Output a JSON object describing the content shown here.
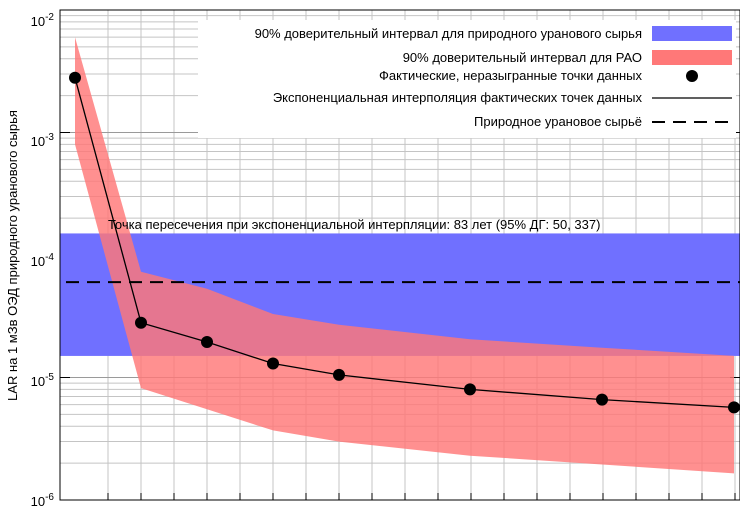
{
  "chart_data": {
    "type": "line",
    "title": "",
    "xlabel": "",
    "ylabel": "LAR на 1 мЗв ОЭД природного уранового сырья",
    "yscale": "log",
    "ylim": [
      1e-06,
      0.01
    ],
    "ytick_labels": [
      {
        "base": "10",
        "exp": "-6",
        "value": 1e-06
      },
      {
        "base": "10",
        "exp": "-5",
        "value": 1e-05
      },
      {
        "base": "10",
        "exp": "-4",
        "value": 0.0001
      },
      {
        "base": "10",
        "exp": "-3",
        "value": 0.001
      },
      {
        "base": "10",
        "exp": "-2",
        "value": 0.01
      }
    ],
    "x_tick_labels_visible": false,
    "grid": true,
    "legend_position": "top-right",
    "bands": [
      {
        "name": "90% доверительный интервал для природного уранового сырья",
        "color": "#7070ff",
        "lower": 1.5e-05,
        "upper": 0.00015
      },
      {
        "name": "90% доверительный интервал для РАО",
        "color": "#ff7878",
        "lower": [
          0.0008,
          8.2e-06,
          5.5e-06,
          3.7e-06,
          3e-06,
          2.3e-06,
          1.95e-06,
          1.65e-06
        ],
        "upper": [
          0.006,
          7.3e-05,
          5.3e-05,
          3.3e-05,
          2.7e-05,
          2.05e-05,
          1.75e-05,
          1.5e-05
        ]
      }
    ],
    "series": [
      {
        "name": "Фактические, неразыгранные точки данных",
        "marker": "circle",
        "y": [
          0.0028,
          2.8e-05,
          1.95e-05,
          1.3e-05,
          1.05e-05,
          8e-06,
          6.6e-06,
          5.7e-06
        ]
      },
      {
        "name": "Экспоненциальная интерполяция фактических точек данных",
        "style": "solid"
      },
      {
        "name": "Природное урановое сырьё",
        "style": "dashed",
        "value": 6e-05
      }
    ],
    "annotation": "Точка пересечения при экспоненциальной интерпляции: 83 лет (95% ДГ: 50, 337)"
  }
}
